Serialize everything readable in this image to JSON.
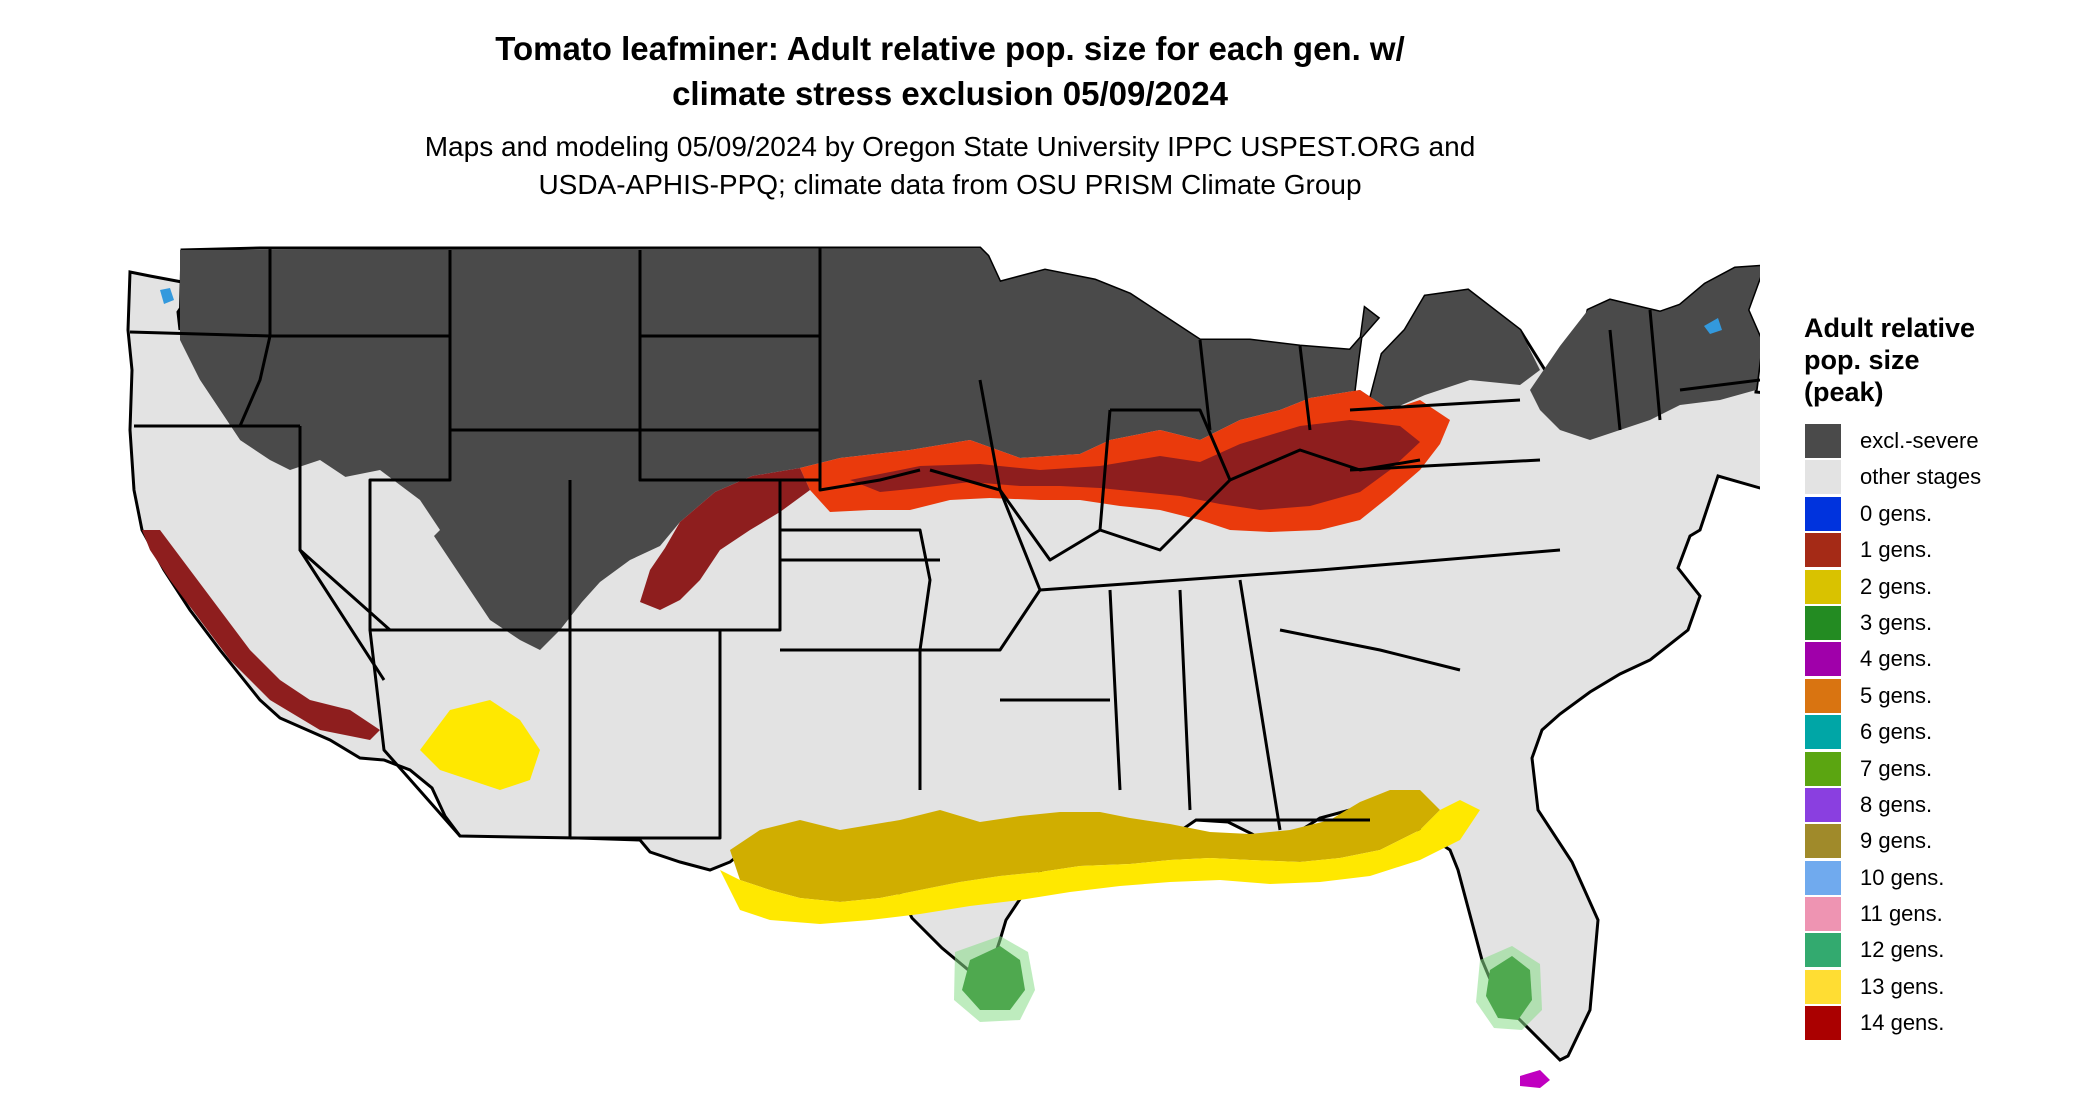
{
  "title_lines": [
    "Tomato leafminer: Adult relative pop. size for each gen. w/",
    "climate stress exclusion 05/09/2024"
  ],
  "subtitle_lines": [
    "Maps and modeling 05/09/2024 by Oregon State University IPPC USPEST.ORG and",
    "USDA-APHIS-PPQ; climate data from OSU PRISM Climate Group"
  ],
  "legend": {
    "title_lines": [
      "Adult relative",
      "pop. size",
      "(peak)"
    ],
    "items": [
      {
        "label": "excl.-severe",
        "color": "#4a4a4a"
      },
      {
        "label": "other stages",
        "color": "#e3e3e3"
      },
      {
        "label": "0 gens.",
        "color": "#0033dd"
      },
      {
        "label": "1 gens.",
        "color": "#a52a16"
      },
      {
        "label": "2 gens.",
        "color": "#d9c200"
      },
      {
        "label": "3 gens.",
        "color": "#238b22"
      },
      {
        "label": "4 gens.",
        "color": "#a000aa"
      },
      {
        "label": "5 gens.",
        "color": "#d97411"
      },
      {
        "label": "6 gens.",
        "color": "#00a6a6"
      },
      {
        "label": "7 gens.",
        "color": "#5ba511"
      },
      {
        "label": "8 gens.",
        "color": "#8a3fe0"
      },
      {
        "label": "9 gens.",
        "color": "#a08a2a"
      },
      {
        "label": "10 gens.",
        "color": "#70aaee"
      },
      {
        "label": "11 gens.",
        "color": "#ee94b2"
      },
      {
        "label": "12 gens.",
        "color": "#33aa6f"
      },
      {
        "label": "13 gens.",
        "color": "#ffdd33"
      },
      {
        "label": "14 gens.",
        "color": "#aa0000"
      }
    ]
  },
  "map_colors": {
    "excluded": "#4a4a4a",
    "other": "#e3e3e3",
    "one_gen_dark": "#8e1e1e",
    "one_gen_bright": "#ea3a0c",
    "two_gen": "#d0ae00",
    "thirteen_gen": "#ffe800",
    "three_gen": "#0a6a0a",
    "twelve_gen": "#88dd88",
    "four_gen": "#c000c0",
    "zero_gen": "#3399dd",
    "border": "#000000"
  }
}
